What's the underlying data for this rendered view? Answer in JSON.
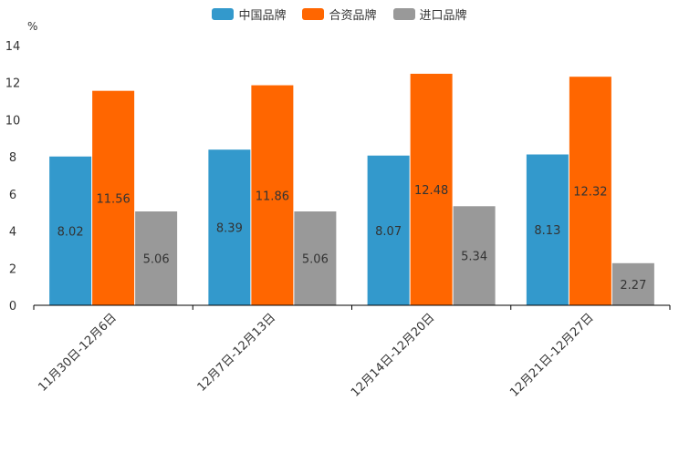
{
  "chart_data": {
    "type": "bar",
    "unit": "%",
    "categories": [
      "11月30日-12月6日",
      "12月7日-12月13日",
      "12月14日-12月20日",
      "12月21日-12月27日"
    ],
    "series": [
      {
        "name": "中国品牌",
        "color": "#3399cc",
        "values": [
          8.02,
          8.39,
          8.07,
          8.13
        ]
      },
      {
        "name": "合资品牌",
        "color": "#ff6600",
        "values": [
          11.56,
          11.86,
          12.48,
          12.32
        ]
      },
      {
        "name": "进口品牌",
        "color": "#999999",
        "values": [
          5.06,
          5.06,
          5.34,
          2.27
        ]
      }
    ],
    "ylim": [
      0,
      14
    ],
    "yticks": [
      "0",
      "2",
      "4",
      "6",
      "8",
      "10",
      "12",
      "14"
    ],
    "legend_position": "top-center"
  }
}
